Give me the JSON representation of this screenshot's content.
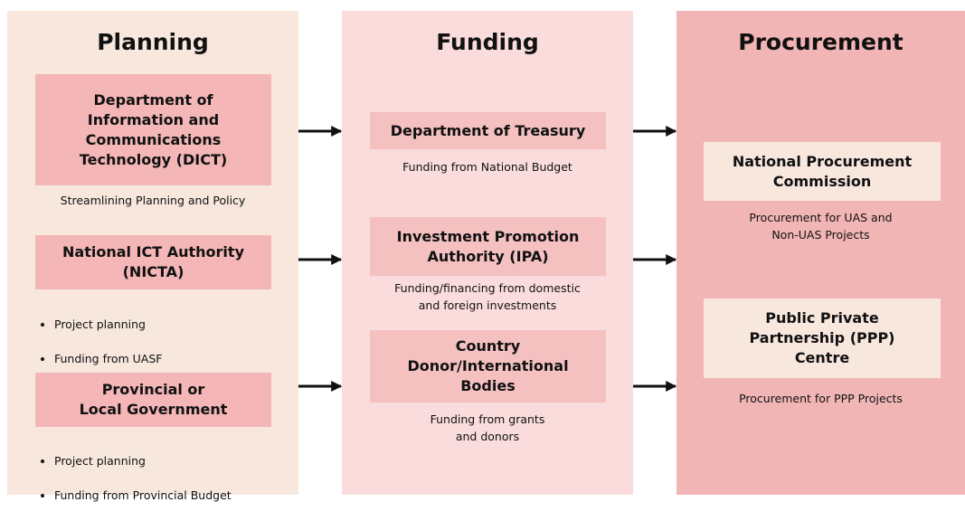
{
  "columns": [
    {
      "title": "Planning",
      "boxes": [
        {
          "label": "Department of\nInformation and\nCommunications\nTechnology (DICT)",
          "caption": "Streamlining Planning and Policy"
        },
        {
          "label": "National ICT Authority\n(NICTA)",
          "bullets": [
            "Project planning",
            "Funding from UASF"
          ]
        },
        {
          "label": "Provincial or\nLocal Government",
          "bullets": [
            "Project planning",
            "Funding from Provincial Budget"
          ]
        }
      ]
    },
    {
      "title": "Funding",
      "boxes": [
        {
          "label": "Department of Treasury",
          "caption": "Funding from National Budget"
        },
        {
          "label": "Investment Promotion\nAuthority (IPA)",
          "caption": "Funding/financing from domestic\nand foreign investments"
        },
        {
          "label": "Country\nDonor/International\nBodies",
          "caption": "Funding from grants\nand donors"
        }
      ]
    },
    {
      "title": "Procurement",
      "boxes": [
        {
          "label": "National Procurement\nCommission",
          "caption": "Procurement for UAS and\nNon-UAS Projects"
        },
        {
          "label": "Public Private\nPartnership (PPP)\nCentre",
          "caption": "Procurement for PPP Projects"
        }
      ]
    }
  ]
}
